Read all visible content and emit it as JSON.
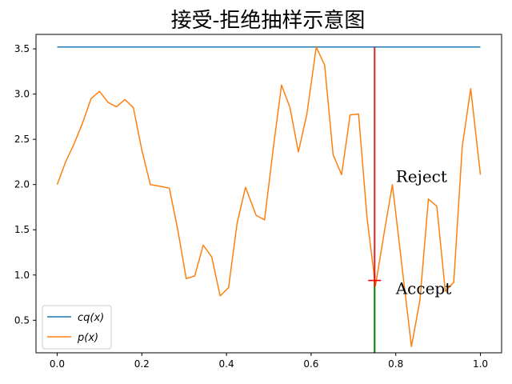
{
  "chart_data": {
    "type": "line",
    "title": "接受-拒绝抽样示意图",
    "xlabel": "",
    "ylabel": "",
    "xlim": [
      -0.05,
      1.05
    ],
    "ylim": [
      0.14,
      3.66
    ],
    "x_ticks": [
      0.0,
      0.2,
      0.4,
      0.6,
      0.8,
      1.0
    ],
    "x_tick_labels": [
      "0.0",
      "0.2",
      "0.4",
      "0.6",
      "0.8",
      "1.0"
    ],
    "y_ticks": [
      0.5,
      1.0,
      1.5,
      2.0,
      2.5,
      3.0,
      3.5
    ],
    "y_tick_labels": [
      "0.5",
      "1.0",
      "1.5",
      "2.0",
      "2.5",
      "3.0",
      "3.5"
    ],
    "grid": false,
    "legend_position": "lower-left",
    "series": [
      {
        "name": "cq(x)",
        "legend_label": "cq(x)",
        "color": "#1f77b4",
        "x": [
          0.0,
          1.0
        ],
        "y": [
          3.52,
          3.52
        ]
      },
      {
        "name": "p(x)",
        "legend_label": "p(x)",
        "color": "#ff7f0e",
        "x": [
          0.0,
          0.02,
          0.04,
          0.06,
          0.08,
          0.1,
          0.12,
          0.14,
          0.16,
          0.18,
          0.2,
          0.22,
          0.245,
          0.265,
          0.285,
          0.305,
          0.325,
          0.345,
          0.365,
          0.385,
          0.405,
          0.425,
          0.445,
          0.47,
          0.49,
          0.51,
          0.53,
          0.55,
          0.57,
          0.59,
          0.612,
          0.632,
          0.652,
          0.672,
          0.692,
          0.712,
          0.732,
          0.752,
          0.772,
          0.792,
          0.812,
          0.837,
          0.857,
          0.877,
          0.897,
          0.917,
          0.937,
          0.957,
          0.977,
          1.0
        ],
        "y": [
          2.0,
          2.25,
          2.45,
          2.68,
          2.95,
          3.03,
          2.91,
          2.86,
          2.94,
          2.85,
          2.38,
          2.0,
          1.98,
          1.96,
          1.5,
          0.96,
          0.99,
          1.33,
          1.2,
          0.77,
          0.86,
          1.57,
          1.97,
          1.66,
          1.61,
          2.38,
          3.1,
          2.85,
          2.36,
          2.78,
          3.52,
          3.32,
          2.33,
          2.11,
          2.77,
          2.78,
          1.64,
          0.88,
          1.45,
          2.0,
          1.2,
          0.21,
          0.72,
          1.84,
          1.76,
          0.82,
          0.92,
          2.42,
          3.06,
          2.11
        ]
      }
    ],
    "sample": {
      "x": 0.75,
      "y_sample": 0.94,
      "reject_color": "#d62728",
      "accept_color": "#008000",
      "marker_color": "#ff0000"
    },
    "annotations": [
      {
        "text": "Reject",
        "x": 0.8,
        "y": 2.03
      },
      {
        "text": "Accept",
        "x": 0.8,
        "y": 0.79
      }
    ]
  }
}
